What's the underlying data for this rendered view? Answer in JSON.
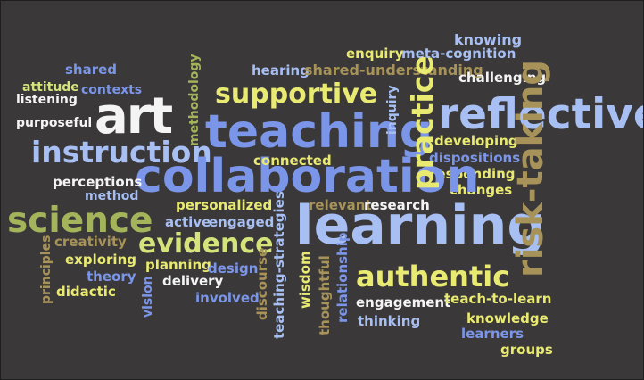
{
  "words": {
    "shared": "shared",
    "attitude": "attitude",
    "listening": "listening",
    "contexts": "contexts",
    "purposeful": "purposeful",
    "art": "art",
    "supportive": "supportive",
    "teaching": "teaching",
    "hearing": "hearing",
    "shared_understanding": "shared-understanding",
    "enquiry": "enquiry",
    "meta_cognition": "meta-cognition",
    "knowing": "knowing",
    "challenging": "challenging",
    "reflective": "reflective",
    "developing": "developing",
    "dispositions": "dispositions",
    "responding": "responding",
    "changes": "changes",
    "instruction": "instruction",
    "collaboration": "collaboration",
    "connected": "connected",
    "perceptions": "perceptions",
    "method": "method",
    "science": "science",
    "personalized": "personalized",
    "active": "active",
    "engaged": "engaged",
    "evidence": "evidence",
    "creativity": "creativity",
    "exploring": "exploring",
    "theory": "theory",
    "didactic": "didactic",
    "planning": "planning",
    "design": "design",
    "delivery": "delivery",
    "involved": "involved",
    "relevant": "relevant",
    "research": "research",
    "learning": "learning",
    "authentic": "authentic",
    "engagement": "engagement",
    "thinking": "thinking",
    "teach_to_learn": "teach-to-learn",
    "knowledge": "knowledge",
    "learners": "learners",
    "groups": "groups",
    "methodology": "methodology",
    "practice": "practice",
    "inquiry": "inquiry",
    "risk_taking": "risk-taking",
    "principles": "principles",
    "vision": "vision",
    "discourse": "discourse",
    "teaching_strategies": "teaching-strategies",
    "wisdom": "wisdom",
    "thoughtful": "thoughtful",
    "relationship": "relationship"
  },
  "colors": {
    "background": "#3a3838",
    "white": "#f4f4f4",
    "blue": "#7b96e8",
    "light_blue": "#a7bff2",
    "yellow": "#e9ea72",
    "yellow_green": "#d6e37b",
    "green": "#a3b45a",
    "olive": "#a79359"
  }
}
